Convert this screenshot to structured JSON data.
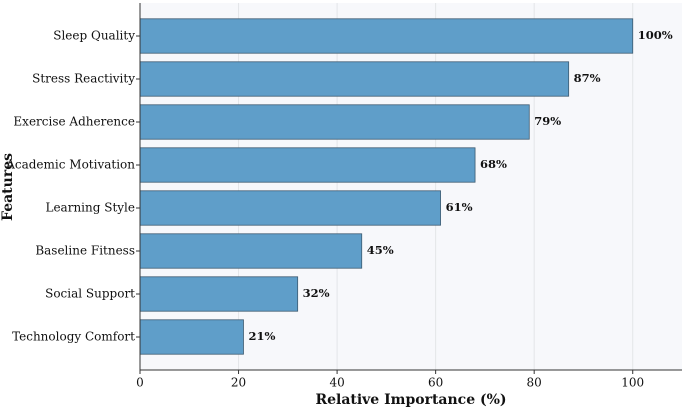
{
  "chart_data": {
    "type": "bar",
    "orientation": "horizontal",
    "x_label": "Relative Importance (%)",
    "y_label": "Features",
    "categories": [
      "Sleep Quality",
      "Stress Reactivity",
      "Exercise Adherence",
      "Academic Motivation",
      "Learning Style",
      "Baseline Fitness",
      "Social Support",
      "Technology Comfort"
    ],
    "values": [
      100,
      87,
      79,
      68,
      61,
      45,
      32,
      21
    ],
    "value_labels": [
      "100%",
      "87%",
      "79%",
      "68%",
      "61%",
      "45%",
      "32%",
      "21%"
    ],
    "color": "#5f9ec9",
    "xlim": [
      0,
      110
    ],
    "xticks": [
      0,
      20,
      40,
      60,
      80,
      100
    ],
    "grid": true
  }
}
